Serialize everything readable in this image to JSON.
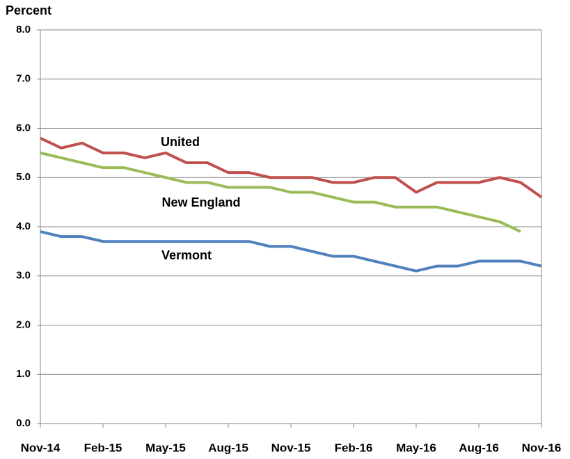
{
  "chart_data": {
    "type": "line",
    "y_label": "Percent",
    "categories": [
      "Nov-14",
      null,
      null,
      "Feb-15",
      null,
      null,
      "May-15",
      null,
      null,
      "Aug-15",
      null,
      null,
      "Nov-15",
      null,
      null,
      "Feb-16",
      null,
      null,
      "May-16",
      null,
      null,
      "Aug-16",
      null,
      null,
      "Nov-16"
    ],
    "series": [
      {
        "name": "United",
        "color": "#c0504d",
        "values": [
          5.8,
          5.6,
          5.7,
          5.5,
          5.5,
          5.4,
          5.5,
          5.3,
          5.3,
          5.1,
          5.1,
          5.0,
          5.0,
          5.0,
          4.9,
          4.9,
          5.0,
          5.0,
          4.7,
          4.9,
          4.9,
          4.9,
          5.0,
          4.9,
          4.6
        ]
      },
      {
        "name": "New England",
        "color": "#9bbb59",
        "values": [
          5.5,
          5.4,
          5.3,
          5.2,
          5.2,
          5.1,
          5.0,
          4.9,
          4.9,
          4.8,
          4.8,
          4.8,
          4.7,
          4.7,
          4.6,
          4.5,
          4.5,
          4.4,
          4.4,
          4.4,
          4.3,
          4.2,
          4.1,
          3.9,
          null
        ]
      },
      {
        "name": "Vermont",
        "color": "#4f81bd",
        "values": [
          3.9,
          3.8,
          3.8,
          3.7,
          3.7,
          3.7,
          3.7,
          3.7,
          3.7,
          3.7,
          3.7,
          3.6,
          3.6,
          3.5,
          3.4,
          3.4,
          3.3,
          3.2,
          3.1,
          3.2,
          3.2,
          3.3,
          3.3,
          3.3,
          3.2
        ]
      }
    ],
    "ylim": [
      0,
      8
    ],
    "yticks": [
      {
        "value": 0,
        "label": "0.0"
      },
      {
        "value": 1,
        "label": "1.0"
      },
      {
        "value": 2,
        "label": "2.0"
      },
      {
        "value": 3,
        "label": "3.0"
      },
      {
        "value": 4,
        "label": "4.0"
      },
      {
        "value": 5,
        "label": "5.0"
      },
      {
        "value": 6,
        "label": "6.0"
      },
      {
        "value": 7,
        "label": "7.0"
      },
      {
        "value": 8,
        "label": "8.0"
      }
    ],
    "grid": true
  }
}
